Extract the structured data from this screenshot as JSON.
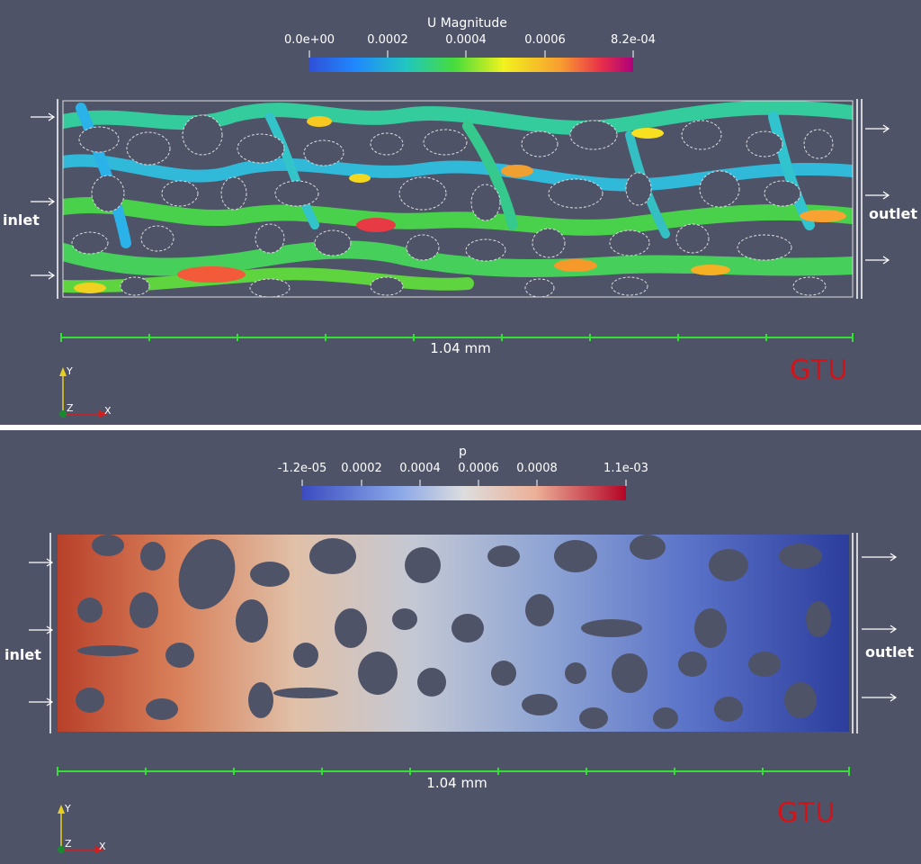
{
  "top_panel": {
    "colorbar": {
      "title": "U Magnitude",
      "ticks": [
        "0.0e+00",
        "0.0002",
        "0.0004",
        "0.0006",
        "8.2e-04"
      ],
      "colors": [
        "#3b4cc0",
        "#1f77ff",
        "#21c6c0",
        "#3fdc3c",
        "#f5f51f",
        "#f8a232",
        "#e8304a",
        "#b3007a"
      ]
    },
    "inlet_label": "inlet",
    "outlet_label": "outlet",
    "scale_label": "1.04 mm",
    "brand": "GTU",
    "axes": {
      "y": "Y",
      "z": "Z",
      "x": "X"
    }
  },
  "bottom_panel": {
    "colorbar": {
      "title": "p",
      "ticks": [
        "-1.2e-05",
        "0.0002",
        "0.0004",
        "0.0006",
        "0.0008",
        "1.1e-03"
      ],
      "colors": [
        "#3b4cc0",
        "#8aa7e8",
        "#dddddd",
        "#ecb097",
        "#b40426"
      ]
    },
    "inlet_label": "inlet",
    "outlet_label": "outlet",
    "scale_label": "1.04 mm",
    "brand": "GTU",
    "axes": {
      "y": "Y",
      "z": "Z",
      "x": "X"
    }
  },
  "colors": {
    "background": "#4f5368",
    "scale_bar": "#35e035",
    "brand": "#d1141a"
  }
}
